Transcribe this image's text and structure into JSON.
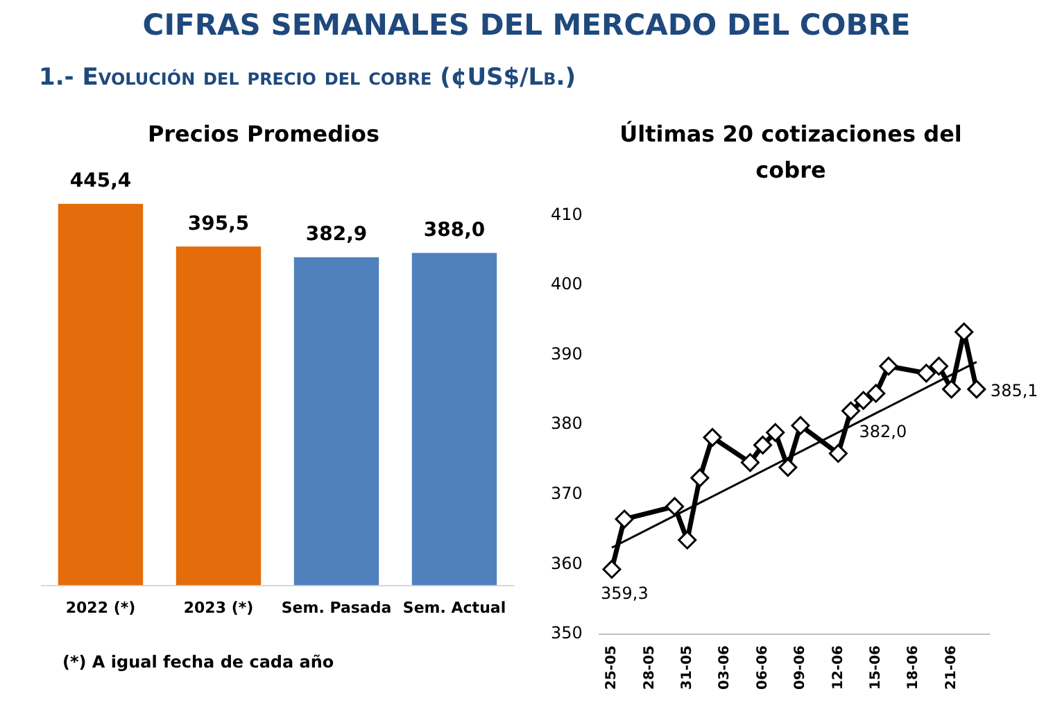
{
  "chart_data": [
    {
      "type": "bar",
      "title": "Precios Promedios",
      "categories": [
        "2022 (*)",
        "2023 (*)",
        "Sem. Pasada",
        "Sem. Actual"
      ],
      "values": [
        445.4,
        395.5,
        382.9,
        388.0
      ],
      "colors": [
        "#e46c0a",
        "#e46c0a",
        "#4f81bd",
        "#4f81bd"
      ],
      "value_labels": [
        "445,4",
        "395,5",
        "382,9",
        "388,0"
      ],
      "tick_labels": "x",
      "grid": false,
      "legend": false,
      "annotations": [
        "CIFRAS SEMANALES DEL MERCADO DEL COBRE",
        "1.- Evolución del precio del cobre (¢US$/Lb.)",
        "(*) A igual fecha de cada año"
      ]
    },
    {
      "type": "line",
      "title": "Últimas 20 cotizaciones del cobre",
      "grid": false,
      "legend": false,
      "xlim": [
        "--05-24",
        "--06-24"
      ],
      "xticks": [
        {
          "value": "--05-25",
          "label": "25-05"
        },
        {
          "value": "--05-28",
          "label": "28-05"
        },
        {
          "value": "--05-31",
          "label": "31-05"
        },
        {
          "value": "--06-03",
          "label": "03-06"
        },
        {
          "value": "--06-06",
          "label": "06-06"
        },
        {
          "value": "--06-09",
          "label": "09-06"
        },
        {
          "value": "--06-12",
          "label": "12-06"
        },
        {
          "value": "--06-15",
          "label": "15-06"
        },
        {
          "value": "--06-18",
          "label": "18-06"
        },
        {
          "value": "--06-21",
          "label": "21-06"
        }
      ],
      "ylim": [
        350,
        410
      ],
      "yticks": [
        350,
        360,
        370,
        380,
        390,
        400,
        410
      ],
      "series": [
        {
          "color": "#000000",
          "marker": "diamond",
          "x": [
            "--05-25",
            "--05-26",
            "--05-30",
            "--05-31",
            "--06-01",
            "--06-02",
            "--06-05",
            "--06-06",
            "--06-07",
            "--06-08",
            "--06-09",
            "--06-12",
            "--06-13",
            "--06-14",
            "--06-15",
            "--06-16",
            "--06-19",
            "--06-20",
            "--06-21",
            "--06-22",
            "--06-23"
          ],
          "values": [
            359.3,
            366.5,
            368.3,
            363.5,
            372.4,
            378.2,
            374.6,
            377.1,
            378.9,
            373.9,
            379.9,
            375.9,
            382.0,
            383.5,
            384.5,
            388.4,
            387.4,
            388.4,
            385.1,
            393.3,
            385.1
          ],
          "value_labels": [
            "359,3",
            null,
            null,
            null,
            null,
            null,
            null,
            null,
            null,
            null,
            null,
            null,
            "382,0",
            null,
            null,
            null,
            null,
            null,
            null,
            null,
            "385,1"
          ]
        },
        {
          "type": "line",
          "color": "#000000",
          "marker": "none",
          "x": [
            "--05-25",
            "--06-23"
          ],
          "values": [
            362.4,
            389.0
          ]
        }
      ]
    }
  ]
}
